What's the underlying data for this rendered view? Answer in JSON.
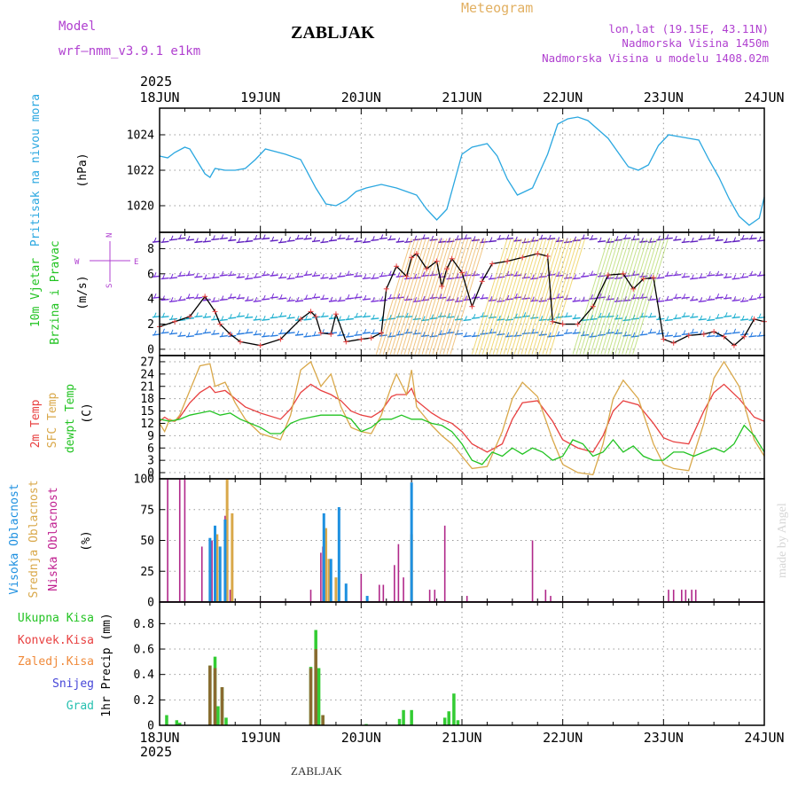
{
  "header": {
    "model_label": "Model",
    "model_name": "wrf–nmm_v3.9.1  e1km",
    "title": "Meteogram",
    "location": "ZABLJAK",
    "coords": "lon,lat (19.15E, 43.11N)",
    "elevation": "Nadmorska Visina 1450m",
    "model_elevation": "Nadmorska Visina u modelu 1408.02m",
    "year_top": "2025",
    "year_bottom": "2025",
    "footer_label": "ZABLJAK",
    "watermark": "made by Angel"
  },
  "colors": {
    "pressure": "#2aa7e0",
    "wind_speed": "#000000",
    "wind_marker": "#e84040",
    "temp2m": "#e84040",
    "sfc_temp": "#d9a84a",
    "dewpt": "#22c322",
    "cloud_high": "#1e90e0",
    "cloud_mid": "#d9a84a",
    "cloud_low": "#b0288a",
    "precip_total": "#33cc33",
    "precip_conv": "#e84040",
    "precip_frozen": "#f08a3a",
    "snow": "#4646d8",
    "hail": "#27c0b0",
    "isobar_label": "#2aa7e0",
    "wind_label": "#22c322",
    "direction_label": "#b040d0"
  },
  "chart_data": [
    {
      "type": "line",
      "name": "pressure",
      "ylabel_title": "Pritisak na nivou mora",
      "ylabel_unit": "(hPa)",
      "ylim": [
        1018.5,
        1025.5
      ],
      "yticks": [
        1020,
        1022,
        1024
      ],
      "x_day_labels": [
        "18JUN",
        "19JUN",
        "20JUN",
        "21JUN",
        "22JUN",
        "23JUN",
        "24JUN"
      ],
      "x_range_days": [
        0,
        6
      ],
      "grid": true,
      "series": [
        {
          "x": [
            0,
            0.08,
            0.15,
            0.25,
            0.3,
            0.45,
            0.5,
            0.55,
            0.65,
            0.75,
            0.85,
            0.95,
            1.05,
            1.25,
            1.4,
            1.55,
            1.65,
            1.75,
            1.85,
            1.95,
            2.05,
            2.2,
            2.35,
            2.45,
            2.55,
            2.65,
            2.75,
            2.85,
            3.0,
            3.1,
            3.25,
            3.35,
            3.45,
            3.55,
            3.7,
            3.85,
            3.95,
            4.05,
            4.15,
            4.25,
            4.35,
            4.45,
            4.55,
            4.65,
            4.75,
            4.85,
            4.95,
            5.05,
            5.15,
            5.25,
            5.35,
            5.45,
            5.55,
            5.65,
            5.75,
            5.85,
            5.95,
            6.0
          ],
          "y": [
            1022.8,
            1022.7,
            1023.0,
            1023.3,
            1023.2,
            1021.8,
            1021.6,
            1022.1,
            1022.0,
            1022.0,
            1022.1,
            1022.6,
            1023.2,
            1022.9,
            1022.6,
            1021.0,
            1020.1,
            1020.0,
            1020.3,
            1020.8,
            1021.0,
            1021.2,
            1021.0,
            1020.8,
            1020.6,
            1019.8,
            1019.2,
            1019.8,
            1022.9,
            1023.3,
            1023.5,
            1022.8,
            1021.5,
            1020.6,
            1021.0,
            1022.9,
            1024.6,
            1024.9,
            1025.0,
            1024.8,
            1024.3,
            1023.8,
            1023.0,
            1022.2,
            1022.0,
            1022.3,
            1023.4,
            1024.0,
            1023.9,
            1023.8,
            1023.7,
            1022.6,
            1021.6,
            1020.4,
            1019.4,
            1018.9,
            1019.3,
            1020.5
          ]
        }
      ]
    },
    {
      "type": "line",
      "name": "wind",
      "ylabel_title": "10m Vjetar Brzina i Pravac",
      "ylabel_unit": "(m/s)",
      "direction_labels": [
        "N",
        "W",
        "E",
        "S"
      ],
      "ylim": [
        -0.5,
        9.3
      ],
      "yticks": [
        0,
        2,
        4,
        6,
        8
      ],
      "grid": true,
      "series": [
        {
          "name": "wind speed",
          "x": [
            0,
            0.15,
            0.3,
            0.45,
            0.55,
            0.6,
            0.7,
            0.8,
            1.0,
            1.2,
            1.4,
            1.5,
            1.55,
            1.6,
            1.7,
            1.75,
            1.85,
            2.0,
            2.1,
            2.2,
            2.25,
            2.35,
            2.45,
            2.5,
            2.55,
            2.65,
            2.75,
            2.8,
            2.85,
            2.9,
            3.0,
            3.1,
            3.2,
            3.3,
            3.45,
            3.6,
            3.75,
            3.85,
            3.9,
            4.0,
            4.15,
            4.3,
            4.45,
            4.6,
            4.7,
            4.8,
            4.9,
            5.0,
            5.1,
            5.25,
            5.4,
            5.5,
            5.6,
            5.7,
            5.8,
            5.9,
            6.0
          ],
          "y": [
            1.8,
            2.2,
            2.6,
            4.2,
            3.0,
            2.0,
            1.2,
            0.6,
            0.3,
            0.8,
            2.4,
            3.0,
            2.6,
            1.3,
            1.2,
            2.8,
            0.6,
            0.8,
            0.9,
            1.3,
            4.8,
            6.6,
            5.8,
            7.3,
            7.6,
            6.4,
            7.0,
            5.0,
            6.4,
            7.2,
            6.1,
            3.4,
            5.4,
            6.8,
            7.0,
            7.3,
            7.6,
            7.4,
            2.2,
            2.0,
            2.0,
            3.4,
            5.9,
            6.0,
            4.8,
            5.6,
            5.7,
            0.8,
            0.5,
            1.1,
            1.2,
            1.4,
            1.0,
            0.3,
            1.0,
            2.4,
            2.2
          ]
        }
      ]
    },
    {
      "type": "line",
      "name": "temperature",
      "ylabel_title": [
        "2m Temp",
        "SFC Temp",
        "dewpt Temp"
      ],
      "ylabel_unit": "(C)",
      "ylim": [
        -1.5,
        28.5
      ],
      "yticks": [
        0,
        3,
        6,
        9,
        12,
        15,
        18,
        21,
        24,
        27
      ],
      "grid": true,
      "series": [
        {
          "name": "2m Temp",
          "x": [
            0,
            0.05,
            0.1,
            0.15,
            0.2,
            0.3,
            0.4,
            0.5,
            0.55,
            0.65,
            0.75,
            0.85,
            1.0,
            1.2,
            1.3,
            1.4,
            1.5,
            1.6,
            1.7,
            1.8,
            1.9,
            2.0,
            2.1,
            2.2,
            2.3,
            2.35,
            2.45,
            2.5,
            2.55,
            2.7,
            2.8,
            2.9,
            3.0,
            3.1,
            3.25,
            3.4,
            3.5,
            3.6,
            3.75,
            3.9,
            4.0,
            4.15,
            4.3,
            4.4,
            4.5,
            4.6,
            4.75,
            4.9,
            5.0,
            5.1,
            5.25,
            5.4,
            5.5,
            5.6,
            5.75,
            5.9,
            6.0
          ],
          "y": [
            12.5,
            13.5,
            12.7,
            12.5,
            13.5,
            17.0,
            19.5,
            21.0,
            19.5,
            20.0,
            18.0,
            16.0,
            14.5,
            13.0,
            15.5,
            19.5,
            21.5,
            20.0,
            19.0,
            17.5,
            15.0,
            14.0,
            13.5,
            15.0,
            18.5,
            19.0,
            19.0,
            20.5,
            17.5,
            14.5,
            13.0,
            12.0,
            10.0,
            7.0,
            5.0,
            7.0,
            13.0,
            17.0,
            17.5,
            12.5,
            8.0,
            6.0,
            5.0,
            9.0,
            15.0,
            17.5,
            16.5,
            12.0,
            8.5,
            7.5,
            7.0,
            15.0,
            19.5,
            21.5,
            18.0,
            13.5,
            12.5
          ]
        },
        {
          "name": "SFC Temp",
          "x": [
            0,
            0.05,
            0.1,
            0.15,
            0.2,
            0.3,
            0.4,
            0.5,
            0.55,
            0.65,
            0.75,
            0.85,
            1.0,
            1.2,
            1.3,
            1.4,
            1.5,
            1.6,
            1.7,
            1.8,
            1.9,
            2.0,
            2.1,
            2.2,
            2.3,
            2.35,
            2.45,
            2.5,
            2.55,
            2.7,
            2.8,
            2.9,
            3.0,
            3.1,
            3.25,
            3.4,
            3.5,
            3.6,
            3.75,
            3.9,
            4.0,
            4.15,
            4.3,
            4.4,
            4.5,
            4.6,
            4.75,
            4.9,
            5.0,
            5.1,
            5.25,
            5.4,
            5.5,
            5.6,
            5.75,
            5.9,
            6.0
          ],
          "y": [
            12.0,
            10.0,
            13.0,
            12.5,
            14.0,
            20.0,
            26.0,
            26.5,
            21.0,
            22.0,
            17.0,
            13.0,
            9.5,
            8.0,
            14.0,
            25.0,
            27.0,
            21.0,
            24.0,
            16.0,
            11.0,
            10.0,
            9.5,
            14.0,
            21.0,
            24.0,
            19.0,
            25.0,
            16.0,
            11.5,
            9.0,
            7.0,
            4.0,
            1.0,
            1.5,
            10.0,
            18.0,
            22.0,
            18.5,
            8.0,
            2.0,
            0.0,
            -0.5,
            7.0,
            18.0,
            22.5,
            18.0,
            7.0,
            2.0,
            1.0,
            0.5,
            12.0,
            23.0,
            27.0,
            21.0,
            8.0,
            4.0
          ]
        },
        {
          "name": "dewpt Temp",
          "x": [
            0,
            0.1,
            0.2,
            0.3,
            0.4,
            0.5,
            0.6,
            0.7,
            0.8,
            1.0,
            1.1,
            1.2,
            1.3,
            1.4,
            1.5,
            1.6,
            1.7,
            1.8,
            1.9,
            2.0,
            2.1,
            2.2,
            2.3,
            2.4,
            2.5,
            2.6,
            2.7,
            2.8,
            2.9,
            3.0,
            3.1,
            3.2,
            3.3,
            3.4,
            3.5,
            3.6,
            3.7,
            3.8,
            3.9,
            4.0,
            4.1,
            4.2,
            4.3,
            4.4,
            4.5,
            4.6,
            4.7,
            4.8,
            4.9,
            5.0,
            5.1,
            5.2,
            5.3,
            5.4,
            5.5,
            5.6,
            5.7,
            5.8,
            5.9,
            6.0
          ],
          "y": [
            13.0,
            12.5,
            13.0,
            14.0,
            14.5,
            15.0,
            14.0,
            14.5,
            13.0,
            11.0,
            9.5,
            9.5,
            12.0,
            13.0,
            13.5,
            14.0,
            14.0,
            14.0,
            13.0,
            10.0,
            11.0,
            13.0,
            13.0,
            14.0,
            13.0,
            13.0,
            12.0,
            11.5,
            10.0,
            7.0,
            3.0,
            2.0,
            5.0,
            4.0,
            6.0,
            4.5,
            6.0,
            5.0,
            3.0,
            4.0,
            8.0,
            7.0,
            4.0,
            5.0,
            8.0,
            5.0,
            6.5,
            4.0,
            3.0,
            3.0,
            5.0,
            5.0,
            4.0,
            5.0,
            6.0,
            5.0,
            7.0,
            11.5,
            9.0,
            5.0
          ]
        }
      ]
    },
    {
      "type": "bar",
      "name": "cloud",
      "ylabel_title": [
        "Visoka Oblacnost",
        "Srednja Oblacnost",
        "Niska Oblacnost"
      ],
      "ylabel_unit": "(%)",
      "ylim": [
        0,
        100
      ],
      "yticks": [
        0,
        25,
        50,
        75,
        100
      ],
      "grid": true,
      "series": [
        {
          "name": "Niska Oblacnost",
          "x": [
            0.08,
            0.2,
            0.25,
            0.42,
            0.52,
            0.55,
            0.6,
            0.65,
            0.7,
            1.5,
            1.6,
            1.62,
            1.7,
            2.0,
            2.18,
            2.22,
            2.33,
            2.37,
            2.42,
            2.5,
            2.68,
            2.73,
            2.83,
            3.05,
            3.7,
            3.83,
            3.88,
            5.05,
            5.1,
            5.18,
            5.22,
            5.28,
            5.32
          ],
          "y": [
            100,
            100,
            100,
            45,
            50,
            60,
            45,
            70,
            10,
            10,
            40,
            45,
            20,
            23,
            14,
            14,
            30,
            47,
            20,
            60,
            10,
            10,
            62,
            5,
            50,
            10,
            5,
            10,
            10,
            10,
            10,
            10,
            10
          ]
        },
        {
          "name": "Srednja Oblacnost",
          "x": [
            0.57,
            0.67,
            0.72,
            1.65,
            1.68,
            1.75,
            2.5
          ],
          "y": [
            55,
            100,
            72,
            60,
            35,
            20,
            55
          ]
        },
        {
          "name": "Visoka Oblacnost",
          "x": [
            0.5,
            0.55,
            0.6,
            0.65,
            1.63,
            1.7,
            1.78,
            1.85,
            2.06,
            2.5
          ],
          "y": [
            52,
            62,
            45,
            67,
            72,
            35,
            77,
            15,
            5,
            97
          ]
        }
      ]
    },
    {
      "type": "bar",
      "name": "precip",
      "ylabel_title": "1hr Precip",
      "ylabel_unit": "(mm)",
      "legend_labels": [
        "Ukupna Kisa",
        "Konvek.Kisa",
        "Zaledj.Kisa",
        "Snijeg",
        "Grad"
      ],
      "ylim": [
        0,
        0.97
      ],
      "yticks": [
        0,
        0.2,
        0.4,
        0.6,
        0.8
      ],
      "grid": true,
      "series": [
        {
          "name": "Ukupna Kisa",
          "x": [
            0.07,
            0.17,
            0.2,
            0.5,
            0.55,
            0.58,
            0.62,
            0.66,
            1.5,
            1.55,
            1.58,
            1.62,
            2.05,
            2.38,
            2.42,
            2.5,
            2.83,
            2.87,
            2.92,
            2.96
          ],
          "y": [
            0.08,
            0.04,
            0.02,
            0.47,
            0.54,
            0.15,
            0.3,
            0.06,
            0.46,
            0.75,
            0.45,
            0.08,
            0.01,
            0.05,
            0.12,
            0.12,
            0.06,
            0.11,
            0.25,
            0.04
          ]
        },
        {
          "name": "Konvek.Kisa",
          "x": [
            0.5,
            0.55,
            0.62,
            1.5,
            1.55,
            1.62
          ],
          "y": [
            0.47,
            0.45,
            0.3,
            0.45,
            0.6,
            0.08
          ]
        }
      ]
    }
  ]
}
